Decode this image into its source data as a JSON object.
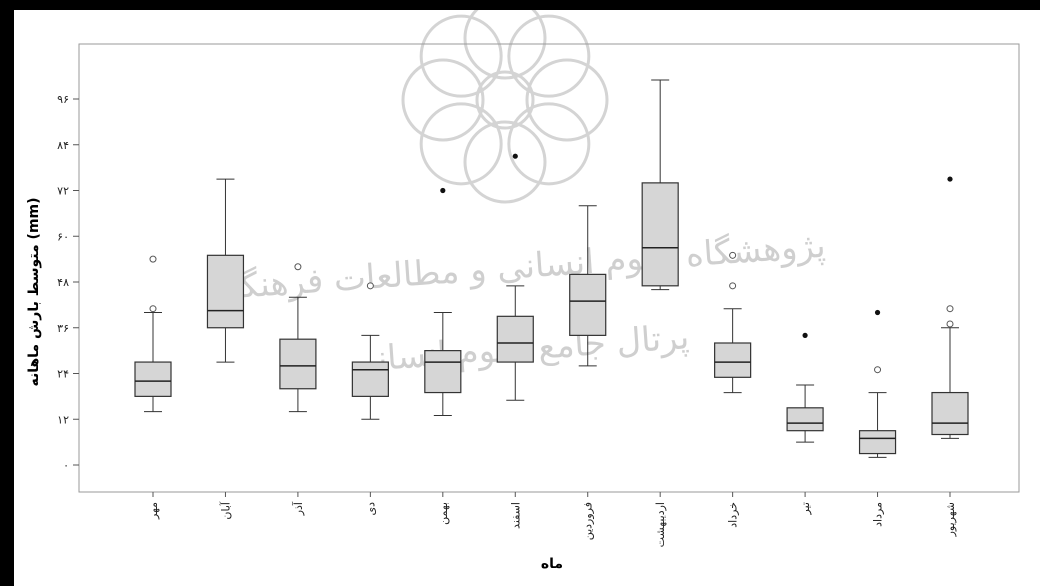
{
  "chart_data": {
    "type": "box",
    "title": "",
    "xlabel": "ماه",
    "ylabel": "متوسط بارش ماهانه (mm)",
    "ylim": [
      -3,
      108
    ],
    "y_ticks": [
      0,
      12,
      24,
      36,
      48,
      60,
      72,
      84,
      96
    ],
    "y_tick_labels": [
      "۰",
      "۱۲",
      "۲۴",
      "۳۶",
      "۴۸",
      "۶۰",
      "۷۲",
      "۸۴",
      "۹۶"
    ],
    "grid": false,
    "categories": [
      "مهر",
      "آبان",
      "آذر",
      "دی",
      "بهمن",
      "اسفند",
      "فروردین",
      "اردیبهشت",
      "خرداد",
      "تیر",
      "مرداد",
      "شهریور"
    ],
    "boxes": [
      {
        "min": 14,
        "q1": 18,
        "median": 22,
        "q3": 27,
        "max": 40,
        "outliers_open": [
          41,
          54
        ],
        "outliers_filled": []
      },
      {
        "min": 27,
        "q1": 36,
        "median": 40.5,
        "q3": 55,
        "max": 75,
        "outliers_open": [],
        "outliers_filled": []
      },
      {
        "min": 14,
        "q1": 20,
        "median": 26,
        "q3": 33,
        "max": 44,
        "outliers_open": [
          52
        ],
        "outliers_filled": []
      },
      {
        "min": 12,
        "q1": 18,
        "median": 25,
        "q3": 27,
        "max": 34,
        "outliers_open": [
          47
        ],
        "outliers_filled": []
      },
      {
        "min": 13,
        "q1": 19,
        "median": 27,
        "q3": 30,
        "max": 40,
        "outliers_open": [],
        "outliers_filled": [
          72
        ]
      },
      {
        "min": 17,
        "q1": 27,
        "median": 32,
        "q3": 39,
        "max": 47,
        "outliers_open": [],
        "outliers_filled": [
          81
        ]
      },
      {
        "min": 26,
        "q1": 34,
        "median": 43,
        "q3": 50,
        "max": 68,
        "outliers_open": [],
        "outliers_filled": []
      },
      {
        "min": 46,
        "q1": 47,
        "median": 57,
        "q3": 74,
        "max": 101,
        "outliers_open": [],
        "outliers_filled": []
      },
      {
        "min": 19,
        "q1": 23,
        "median": 27,
        "q3": 32,
        "max": 41,
        "outliers_open": [
          47,
          55
        ],
        "outliers_filled": []
      },
      {
        "min": 6,
        "q1": 9,
        "median": 11,
        "q3": 15,
        "max": 21,
        "outliers_open": [],
        "outliers_filled": [
          34
        ]
      },
      {
        "min": 2,
        "q1": 3,
        "median": 7,
        "q3": 9,
        "max": 19,
        "outliers_open": [
          25
        ],
        "outliers_filled": [
          40
        ]
      },
      {
        "min": 7,
        "q1": 8,
        "median": 11,
        "q3": 19,
        "max": 36,
        "outliers_open": [
          37,
          41
        ],
        "outliers_filled": [
          75
        ]
      }
    ]
  },
  "watermark": {
    "line1": "پژوهشگاه علوم انسانی و مطالعات فرهنگی",
    "line2": "پرتال جامع علوم انسانی"
  }
}
